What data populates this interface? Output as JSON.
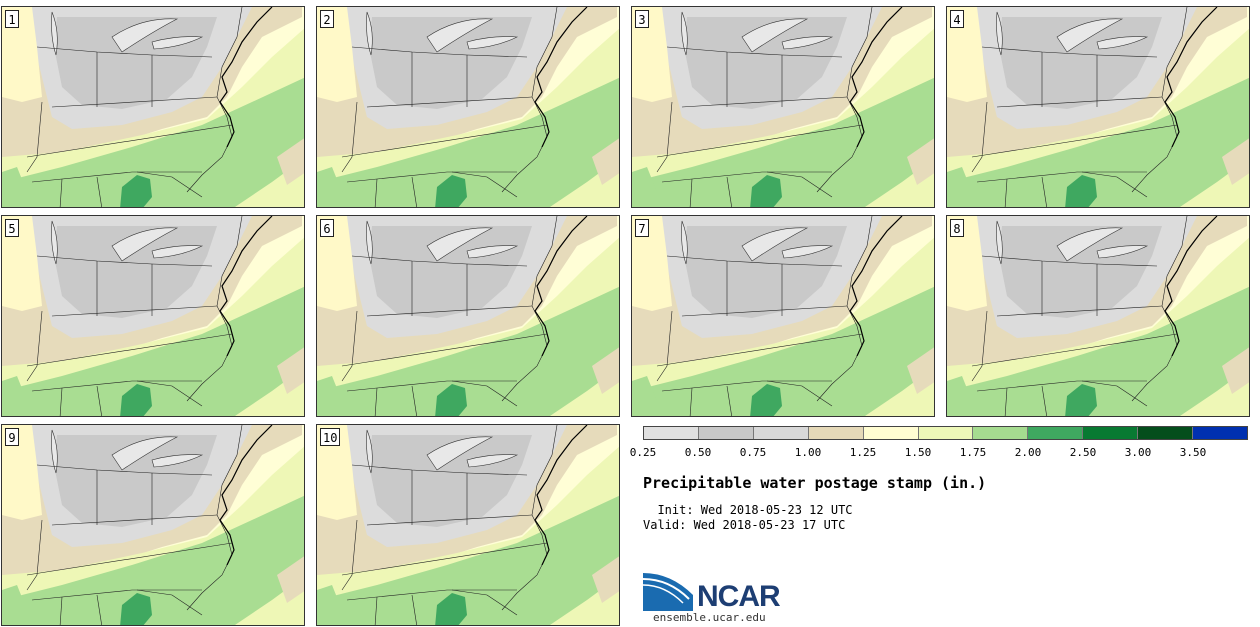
{
  "panels": [
    {
      "label": "1"
    },
    {
      "label": "2"
    },
    {
      "label": "3"
    },
    {
      "label": "4"
    },
    {
      "label": "5"
    },
    {
      "label": "6"
    },
    {
      "label": "7"
    },
    {
      "label": "8"
    },
    {
      "label": "9"
    },
    {
      "label": "10"
    }
  ],
  "legend": {
    "colors": [
      "#e0e0e0",
      "#c8c8c8",
      "#d8d8d8",
      "#e5d9b8",
      "#fffdd2",
      "#edf8b8",
      "#a6dc90",
      "#3fa860",
      "#087a32",
      "#044e1c",
      "#0030b0"
    ],
    "ticks": [
      "0.25",
      "0.50",
      "0.75",
      "1.00",
      "1.25",
      "1.50",
      "1.75",
      "2.00",
      "2.50",
      "3.00",
      "3.50"
    ]
  },
  "title": "Precipitable water postage stamp (in.)",
  "init": "Init: Wed 2018-05-23 12 UTC",
  "valid": "Valid: Wed 2018-05-23 17 UTC",
  "logo": {
    "name": "NCAR",
    "url": "ensemble.ucar.edu"
  }
}
